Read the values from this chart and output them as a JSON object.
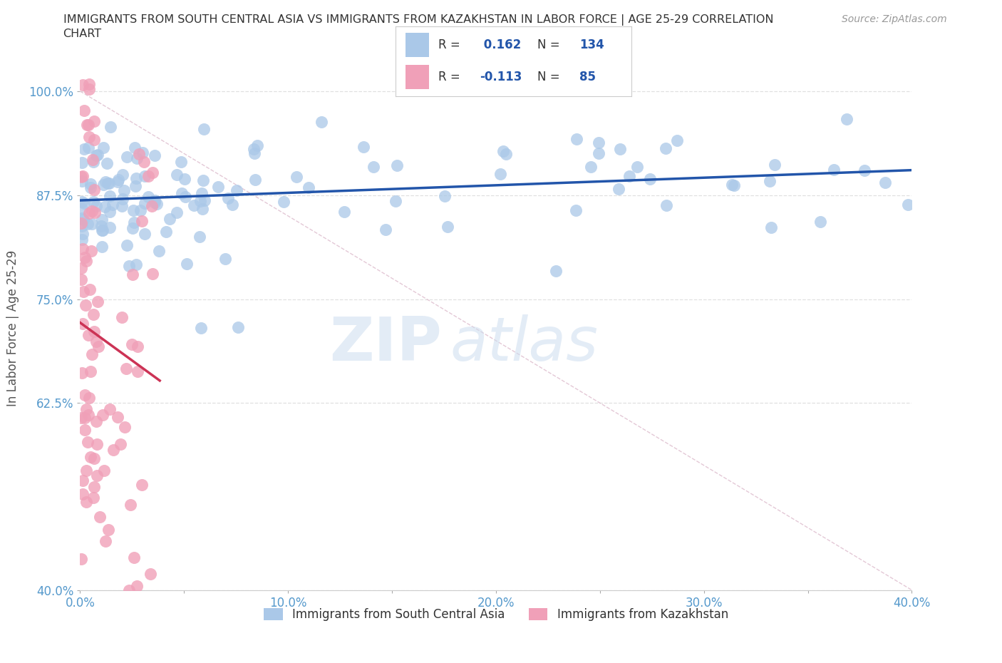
{
  "title_line1": "IMMIGRANTS FROM SOUTH CENTRAL ASIA VS IMMIGRANTS FROM KAZAKHSTAN IN LABOR FORCE | AGE 25-29 CORRELATION",
  "title_line2": "CHART",
  "source": "Source: ZipAtlas.com",
  "ylabel": "In Labor Force | Age 25-29",
  "xlim": [
    0.0,
    0.4
  ],
  "ylim": [
    0.4,
    1.03
  ],
  "yticks": [
    0.4,
    0.625,
    0.75,
    0.875,
    1.0
  ],
  "ytick_labels": [
    "40.0%",
    "62.5%",
    "75.0%",
    "87.5%",
    "100.0%"
  ],
  "xticks": [
    0.0,
    0.05,
    0.1,
    0.15,
    0.2,
    0.25,
    0.3,
    0.35,
    0.4
  ],
  "xtick_labels": [
    "0.0%",
    "",
    "10.0%",
    "",
    "20.0%",
    "",
    "30.0%",
    "",
    "40.0%"
  ],
  "blue_R": 0.162,
  "blue_N": 134,
  "pink_R": -0.113,
  "pink_N": 85,
  "blue_color": "#aac8e8",
  "pink_color": "#f0a0b8",
  "blue_line_color": "#2255aa",
  "pink_line_color": "#cc3355",
  "diag_color": "#ddbbcc",
  "legend_blue_label": "Immigrants from South Central Asia",
  "legend_pink_label": "Immigrants from Kazakhstan",
  "watermark_zip": "ZIP",
  "watermark_atlas": "atlas",
  "bg_color": "#ffffff",
  "axis_color": "#5599cc",
  "title_color": "#333333",
  "grid_color": "#e0e0e0",
  "source_color": "#999999"
}
